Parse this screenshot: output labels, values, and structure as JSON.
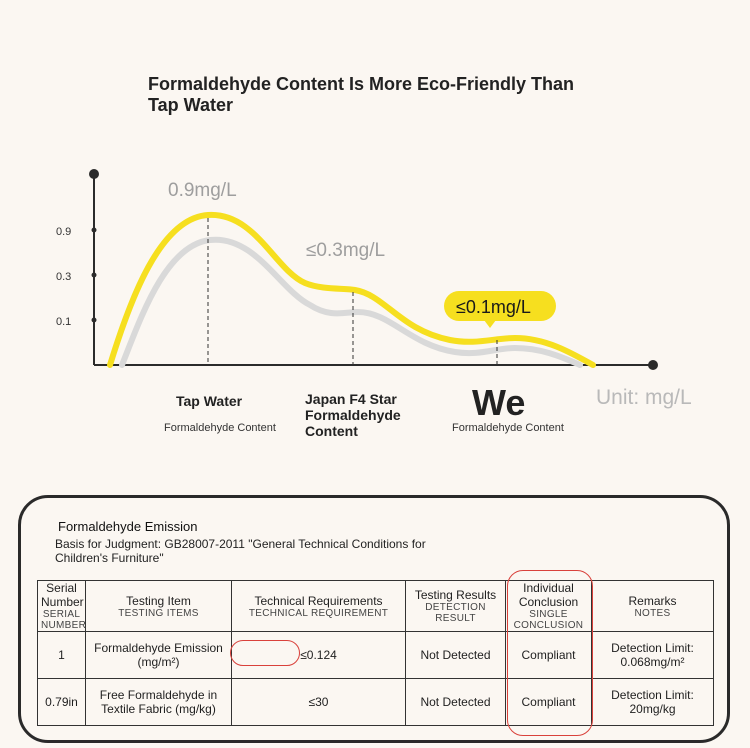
{
  "title": "Formaldehyde Content Is More Eco-Friendly Than Tap Water",
  "chart_data": {
    "type": "area",
    "title": "Formaldehyde Content Is More Eco-Friendly Than Tap Water",
    "unit_label": "Unit: mg/L",
    "y_ticks": [
      "0.9",
      "0.3",
      "0.1"
    ],
    "categories": [
      {
        "name": "Tap Water",
        "sub": "Formaldehyde Content",
        "value_label": "0.9mg/L",
        "value": 0.9
      },
      {
        "name": "Japan F4 Star Formaldehyde Content",
        "sub": "",
        "value_label": "≤0.3mg/L",
        "value": 0.3
      },
      {
        "name": "We",
        "sub": "Formaldehyde Content",
        "value_label": "≤0.1mg/L",
        "value": 0.1
      }
    ],
    "colors": {
      "highlight": "#f6df1f",
      "shadow": "#d9d9d9",
      "axis": "#2b2b2b",
      "label_grey": "#a5a5a5"
    }
  },
  "report": {
    "title": "Formaldehyde Emission",
    "basis": "Basis for Judgment: GB28007-2011 \"General Technical Conditions for Children's Furniture\"",
    "headers": [
      {
        "en": "Serial Number",
        "cn": "SERIAL NUMBER"
      },
      {
        "en": "Testing Item",
        "cn": "TESTING ITEMS"
      },
      {
        "en": "Technical Requirements",
        "cn": "TECHNICAL REQUIREMENT"
      },
      {
        "en": "Testing Results",
        "cn": "DETECTION RESULT"
      },
      {
        "en": "Individual Conclusion",
        "cn": "SINGLE CONCLUSION"
      },
      {
        "en": "Remarks",
        "cn": "NOTES"
      }
    ],
    "rows": [
      {
        "serial": "1",
        "item": "Formaldehyde Emission (mg/m²)",
        "requirement": "≤0.124",
        "result": "Not Detected",
        "conclusion": "Compliant",
        "remarks": "Detection Limit: 0.068mg/m²"
      },
      {
        "serial": "0.79in",
        "item": "Free Formaldehyde in Textile Fabric (mg/kg)",
        "requirement": "≤30",
        "result": "Not Detected",
        "conclusion": "Compliant",
        "remarks": "Detection Limit: 20mg/kg"
      }
    ],
    "highlight_color": "#d9413b"
  }
}
